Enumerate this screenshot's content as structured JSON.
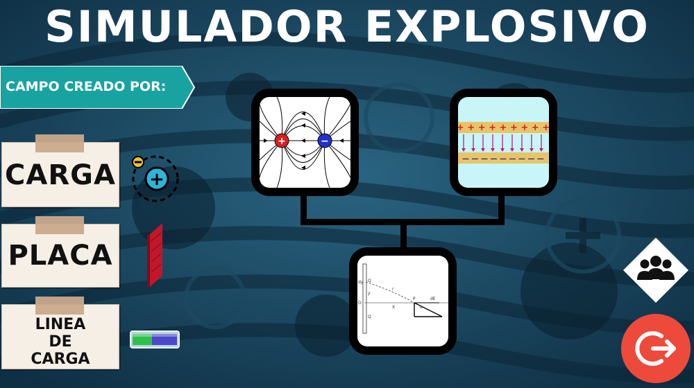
{
  "title": "SIMULADOR EXPLOSIVO",
  "banner": {
    "label": "CAMPO CREADO POR:"
  },
  "options": [
    {
      "label": "CARGA",
      "icon": "charge-icon"
    },
    {
      "label": "PLACA",
      "icon": "plate-icon"
    },
    {
      "label_lines": [
        "LINEA",
        "DE",
        "CARGA"
      ],
      "icon": "charge-line-icon"
    }
  ],
  "panels": {
    "dipole": {
      "pos_sign": "+",
      "neg_sign": "−"
    },
    "plates": {
      "signs_pos": "+ + + + + + + + +",
      "signs_neg": "— — — — — — — — —"
    },
    "line_charge": {
      "labels": [
        "dy",
        "Q",
        "O",
        "y",
        "Q",
        "r",
        "X",
        "P",
        "dE",
        "α"
      ]
    }
  },
  "colors": {
    "accent_exit": "#ee4a3c",
    "title": "#ffffff",
    "banner": "#19a3a0"
  }
}
